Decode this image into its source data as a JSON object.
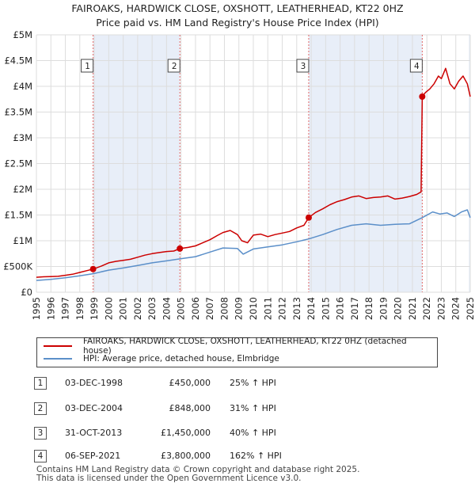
{
  "title_line1": "FAIROAKS, HARDWICK CLOSE, OXSHOTT, LEATHERHEAD, KT22 0HZ",
  "title_line2": "Price paid vs. HM Land Registry's House Price Index (HPI)",
  "colors": {
    "property": "#cc0000",
    "hpi": "#5b8fc9",
    "shade": "#e8eef8",
    "grid": "#dddddd",
    "vline": "#e06666"
  },
  "legend": {
    "property": "FAIROAKS, HARDWICK CLOSE, OXSHOTT, LEATHERHEAD, KT22 0HZ (detached house)",
    "hpi": "HPI: Average price, detached house, Elmbridge"
  },
  "sales": [
    {
      "num": "1",
      "date": "03-DEC-1998",
      "price": "£450,000",
      "hpi": "25% ↑ HPI"
    },
    {
      "num": "2",
      "date": "03-DEC-2004",
      "price": "£848,000",
      "hpi": "31% ↑ HPI"
    },
    {
      "num": "3",
      "date": "31-OCT-2013",
      "price": "£1,450,000",
      "hpi": "40% ↑ HPI"
    },
    {
      "num": "4",
      "date": "06-SEP-2021",
      "price": "£3,800,000",
      "hpi": "162% ↑ HPI"
    }
  ],
  "footer_line1": "Contains HM Land Registry data © Crown copyright and database right 2025.",
  "footer_line2": "This data is licensed under the Open Government Licence v3.0.",
  "chart_data": {
    "type": "line",
    "xlim": [
      1995,
      2025
    ],
    "ylim": [
      0,
      5000000
    ],
    "ytick_values": [
      0,
      500000,
      1000000,
      1500000,
      2000000,
      2500000,
      3000000,
      3500000,
      4000000,
      4500000,
      5000000
    ],
    "ytick_labels": [
      "£0",
      "£500K",
      "£1M",
      "£1.5M",
      "£2M",
      "£2.5M",
      "£3M",
      "£3.5M",
      "£4M",
      "£4.5M",
      "£5M"
    ],
    "xtick_values": [
      1995,
      1996,
      1997,
      1998,
      1999,
      2000,
      2001,
      2002,
      2003,
      2004,
      2005,
      2006,
      2007,
      2008,
      2009,
      2010,
      2011,
      2012,
      2013,
      2014,
      2015,
      2016,
      2017,
      2018,
      2019,
      2020,
      2021,
      2022,
      2023,
      2024,
      2025
    ],
    "xtick_labels": [
      "1995",
      "1996",
      "1997",
      "1998",
      "1999",
      "2000",
      "2001",
      "2002",
      "2003",
      "2004",
      "2005",
      "2006",
      "2007",
      "2008",
      "2009",
      "2010",
      "2011",
      "2012",
      "2013",
      "2014",
      "2015",
      "2016",
      "2017",
      "2018",
      "2019",
      "2020",
      "2021",
      "2022",
      "2023",
      "2024",
      "2025"
    ],
    "shaded_ranges": [
      [
        1998.92,
        2004.92
      ],
      [
        2013.83,
        2021.68
      ],
      [
        2024.9,
        2025.0
      ]
    ],
    "series": [
      {
        "name": "FAIROAKS, HARDWICK CLOSE, OXSHOTT, LEATHERHEAD, KT22 0HZ (detached house)",
        "color": "#cc0000",
        "x": [
          1995,
          1995.5,
          1996,
          1996.5,
          1997,
          1997.5,
          1998,
          1998.5,
          1998.92,
          1999.5,
          2000,
          2000.5,
          2001,
          2001.5,
          2002,
          2002.5,
          2003,
          2003.5,
          2004,
          2004.5,
          2004.92,
          2005.5,
          2006,
          2006.5,
          2007,
          2007.5,
          2007.9,
          2008.4,
          2008.9,
          2009.2,
          2009.6,
          2010,
          2010.5,
          2011,
          2011.5,
          2012,
          2012.5,
          2013,
          2013.5,
          2013.83,
          2014.3,
          2014.8,
          2015.3,
          2015.8,
          2016.3,
          2016.8,
          2017.3,
          2017.8,
          2018.3,
          2018.8,
          2019.3,
          2019.8,
          2020.3,
          2020.8,
          2021.3,
          2021.6,
          2021.68,
          2021.9,
          2022.2,
          2022.5,
          2022.8,
          2023.0,
          2023.3,
          2023.6,
          2023.9,
          2024.2,
          2024.5,
          2024.8,
          2025.0
        ],
        "y": [
          290000,
          300000,
          305000,
          310000,
          330000,
          350000,
          385000,
          420000,
          450000,
          510000,
          570000,
          600000,
          620000,
          640000,
          680000,
          720000,
          750000,
          770000,
          790000,
          800000,
          848000,
          870000,
          900000,
          960000,
          1020000,
          1100000,
          1160000,
          1200000,
          1120000,
          1000000,
          960000,
          1110000,
          1130000,
          1080000,
          1120000,
          1150000,
          1180000,
          1250000,
          1300000,
          1450000,
          1550000,
          1620000,
          1700000,
          1760000,
          1800000,
          1850000,
          1870000,
          1820000,
          1840000,
          1850000,
          1870000,
          1810000,
          1830000,
          1860000,
          1900000,
          1950000,
          3800000,
          3880000,
          3950000,
          4050000,
          4200000,
          4150000,
          4350000,
          4050000,
          3950000,
          4100000,
          4200000,
          4050000,
          3800000
        ]
      },
      {
        "name": "HPI: Average price, detached house, Elmbridge",
        "color": "#5b8fc9",
        "x": [
          1995,
          1996,
          1997,
          1998,
          1998.92,
          2000,
          2001,
          2002,
          2003,
          2004,
          2004.92,
          2006,
          2007,
          2007.9,
          2008.9,
          2009.3,
          2010,
          2011,
          2012,
          2013,
          2013.83,
          2014.8,
          2015.8,
          2016.8,
          2017.8,
          2018.8,
          2019.8,
          2020.8,
          2021.68,
          2022.4,
          2022.9,
          2023.4,
          2023.9,
          2024.4,
          2024.8,
          2025.0
        ],
        "y": [
          230000,
          250000,
          280000,
          320000,
          360000,
          430000,
          470000,
          520000,
          570000,
          610000,
          647000,
          690000,
          780000,
          860000,
          850000,
          740000,
          840000,
          880000,
          920000,
          980000,
          1036000,
          1120000,
          1220000,
          1300000,
          1330000,
          1300000,
          1320000,
          1330000,
          1450000,
          1560000,
          1520000,
          1540000,
          1470000,
          1560000,
          1600000,
          1450000
        ]
      }
    ],
    "sale_points": [
      {
        "label": "1",
        "x": 1998.92,
        "y": 450000
      },
      {
        "label": "2",
        "x": 2004.92,
        "y": 848000
      },
      {
        "label": "3",
        "x": 2013.83,
        "y": 1450000
      },
      {
        "label": "4",
        "x": 2021.68,
        "y": 3800000
      }
    ]
  }
}
